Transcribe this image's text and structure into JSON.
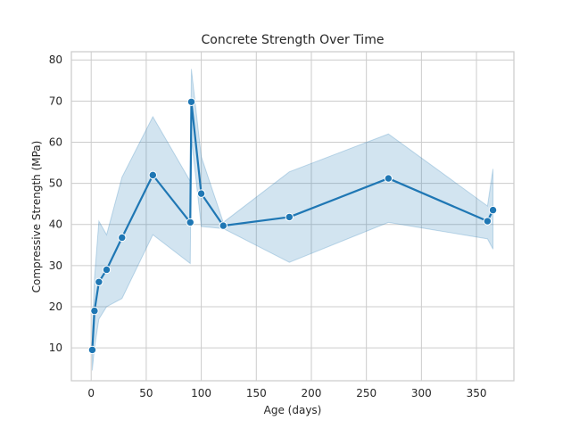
{
  "chart_data": {
    "type": "line",
    "title": "Concrete Strength Over Time",
    "xlabel": "Age (days)",
    "ylabel": "Compressive Strength (MPa)",
    "xlim": [
      -18,
      384
    ],
    "ylim": [
      2,
      82
    ],
    "xticks": [
      0,
      50,
      100,
      150,
      200,
      250,
      300,
      350
    ],
    "yticks": [
      10,
      20,
      30,
      40,
      50,
      60,
      70,
      80
    ],
    "grid": true,
    "legend": "none",
    "colors": {
      "line": "#1f77b4",
      "band": "#1f77b4",
      "grid": "#cccccc",
      "spine": "#cccccc"
    },
    "series": [
      {
        "x": [
          1,
          3,
          7,
          14,
          28,
          56,
          90,
          91,
          100,
          120,
          180,
          270,
          360,
          365
        ],
        "y": [
          9.5,
          19.0,
          26.0,
          29.0,
          36.8,
          52.0,
          40.5,
          69.8,
          47.5,
          39.7,
          41.8,
          51.2,
          40.8,
          43.5
        ],
        "lower": [
          4.5,
          10.0,
          17.0,
          20.0,
          22.0,
          37.5,
          30.5,
          61.0,
          39.5,
          39.0,
          30.8,
          40.5,
          36.5,
          34.0
        ],
        "upper": [
          14.0,
          27.0,
          40.8,
          37.5,
          51.5,
          66.2,
          50.5,
          77.8,
          56.5,
          40.5,
          52.8,
          62.0,
          44.5,
          53.5
        ]
      }
    ]
  }
}
